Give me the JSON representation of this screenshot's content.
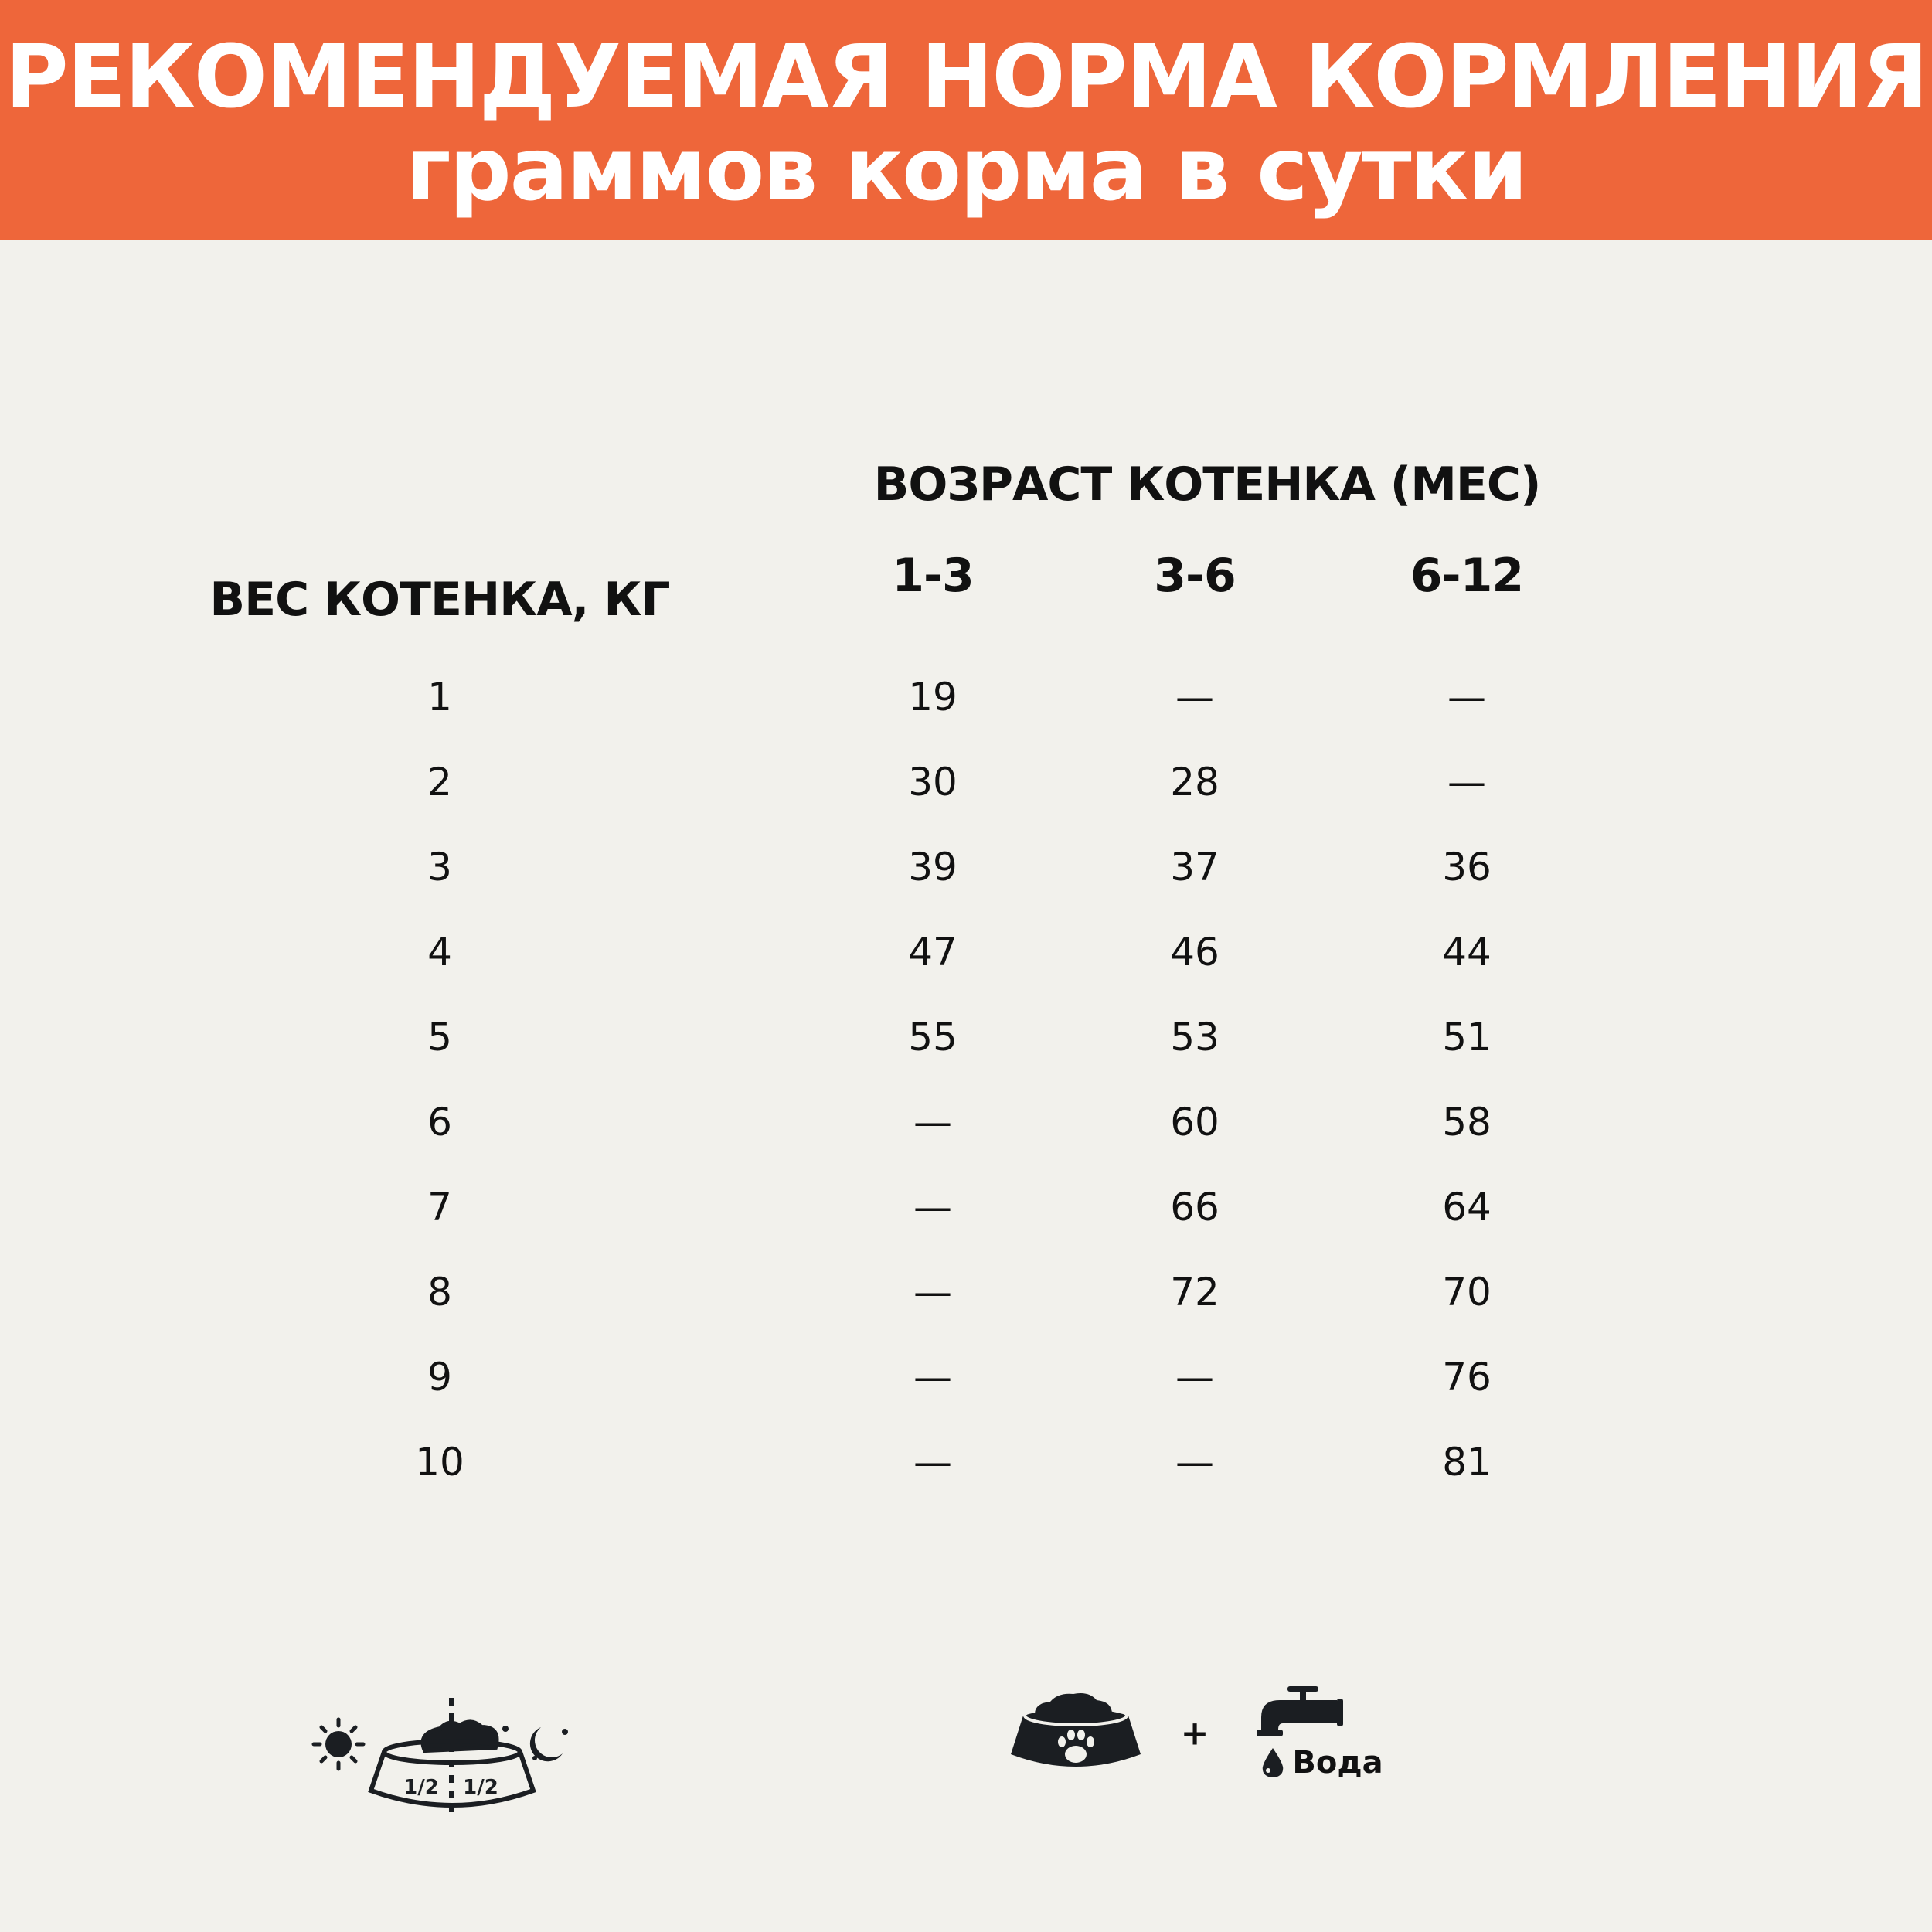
{
  "header": {
    "title": "РЕКОМЕНДУЕМАЯ НОРМА КОРМЛЕНИЯ",
    "subtitle": "граммов корма в сутки",
    "background_color": "#EE663A"
  },
  "table": {
    "age_header": "ВОЗРАСТ КОТЕНКА (МЕС)",
    "weight_header": "ВЕС КОТЕНКА, КГ",
    "age_columns": [
      "1-3",
      "3-6",
      "6-12"
    ],
    "rows": [
      {
        "weight": "1",
        "values": [
          "19",
          "—",
          "—"
        ]
      },
      {
        "weight": "2",
        "values": [
          "30",
          "28",
          "—"
        ]
      },
      {
        "weight": "3",
        "values": [
          "39",
          "37",
          "36"
        ]
      },
      {
        "weight": "4",
        "values": [
          "47",
          "46",
          "44"
        ]
      },
      {
        "weight": "5",
        "values": [
          "55",
          "53",
          "51"
        ]
      },
      {
        "weight": "6",
        "values": [
          "—",
          "60",
          "58"
        ]
      },
      {
        "weight": "7",
        "values": [
          "—",
          "66",
          "64"
        ]
      },
      {
        "weight": "8",
        "values": [
          "—",
          "72",
          "70"
        ]
      },
      {
        "weight": "9",
        "values": [
          "—",
          "—",
          "76"
        ]
      },
      {
        "weight": "10",
        "values": [
          "—",
          "—",
          "81"
        ]
      }
    ]
  },
  "footer": {
    "split_label_left": "1/2",
    "split_label_right": "1/2",
    "plus": "+",
    "water_label": "Вода",
    "icons": [
      "sun-icon",
      "split-bowl-icon",
      "moon-stars-icon",
      "paw-bowl-icon",
      "tap-icon",
      "water-drop-icon"
    ]
  }
}
